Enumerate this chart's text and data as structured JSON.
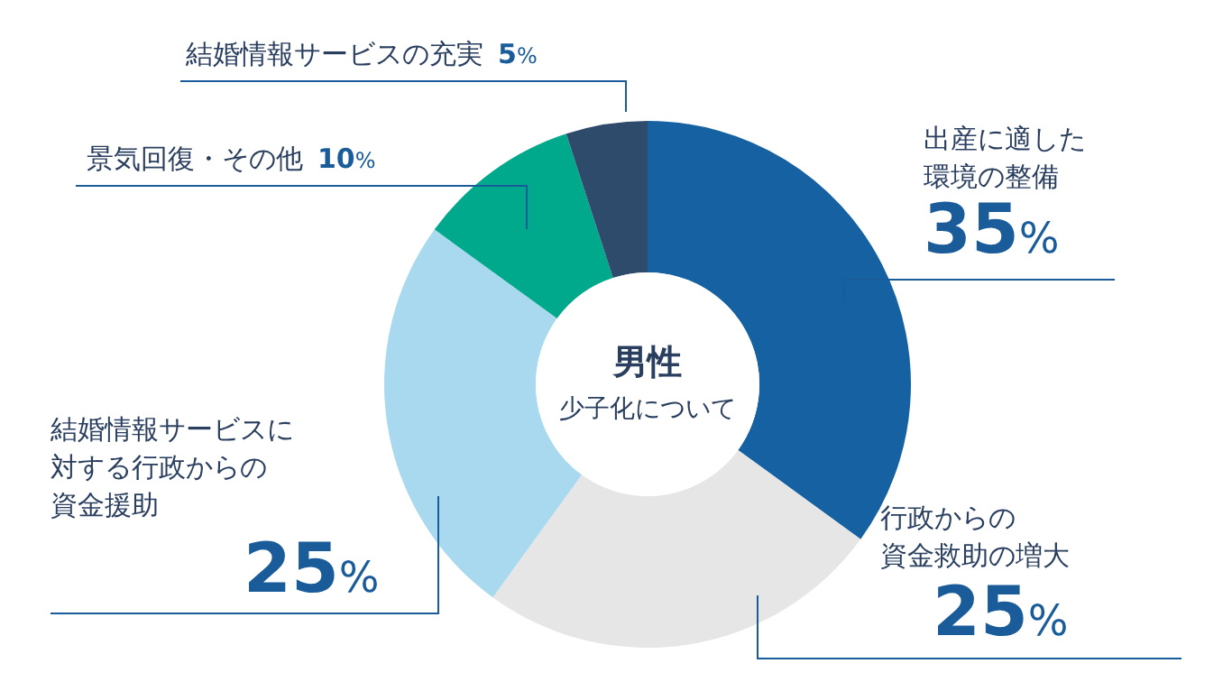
{
  "chart_data": {
    "type": "donut",
    "title": "男性",
    "subtitle": "少子化について",
    "categories": [
      "出産に適した環境の整備",
      "行政からの資金救助の増大",
      "結婚情報サービスに対する行政からの資金援助",
      "景気回復・その他",
      "結婚情報サービスの充実"
    ],
    "values": [
      35,
      25,
      25,
      10,
      5
    ],
    "colors": [
      "#1561a1",
      "#e6e6e6",
      "#a9d9ef",
      "#00a88c",
      "#2e4b6c"
    ],
    "value_labels": [
      "35%",
      "25%",
      "25%",
      "10%",
      "5%"
    ]
  }
}
